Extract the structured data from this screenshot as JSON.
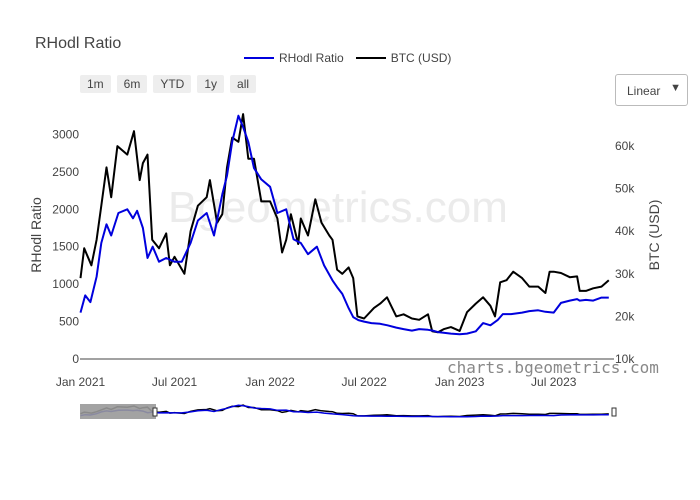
{
  "chart_data": {
    "type": "line",
    "title": "RHodl Ratio",
    "y1label": "RHodl Ratio",
    "y2label": "BTC (USD)",
    "x_ticks": [
      "Jan 2021",
      "Jul 2021",
      "Jan 2022",
      "Jul 2022",
      "Jan 2023",
      "Jul 2023"
    ],
    "y1_ticks": [
      "0",
      "500",
      "1000",
      "1500",
      "2000",
      "2500",
      "3000"
    ],
    "y2_ticks": [
      "10k",
      "20k",
      "30k",
      "40k",
      "50k",
      "60k"
    ],
    "y1lim": [
      0,
      3300
    ],
    "y2lim": [
      10000,
      68000
    ],
    "grid": false,
    "legend_position": "top-center",
    "series": [
      {
        "name": "RHodl Ratio",
        "color": "#0000dd",
        "axis": "left",
        "x": [
          "2021-01-01",
          "2021-01-10",
          "2021-01-20",
          "2021-02-01",
          "2021-02-10",
          "2021-02-20",
          "2021-03-01",
          "2021-03-15",
          "2021-04-01",
          "2021-04-12",
          "2021-04-20",
          "2021-05-01",
          "2021-05-10",
          "2021-05-20",
          "2021-06-01",
          "2021-06-15",
          "2021-07-01",
          "2021-07-15",
          "2021-08-01",
          "2021-08-15",
          "2021-09-01",
          "2021-09-15",
          "2021-10-01",
          "2021-10-10",
          "2021-10-20",
          "2021-11-01",
          "2021-11-10",
          "2021-11-20",
          "2021-12-01",
          "2021-12-15",
          "2022-01-01",
          "2022-01-15",
          "2022-02-01",
          "2022-02-15",
          "2022-03-01",
          "2022-03-15",
          "2022-04-01",
          "2022-04-15",
          "2022-05-01",
          "2022-05-10",
          "2022-05-20",
          "2022-06-01",
          "2022-06-10",
          "2022-06-20",
          "2022-07-01",
          "2022-07-15",
          "2022-08-01",
          "2022-08-15",
          "2022-09-01",
          "2022-09-15",
          "2022-10-01",
          "2022-10-15",
          "2022-11-01",
          "2022-11-10",
          "2022-11-20",
          "2022-12-01",
          "2022-12-15",
          "2023-01-01",
          "2023-01-15",
          "2023-02-01",
          "2023-02-15",
          "2023-03-01",
          "2023-03-15",
          "2023-03-25",
          "2023-04-10",
          "2023-05-01",
          "2023-05-15",
          "2023-06-01",
          "2023-06-15",
          "2023-07-01",
          "2023-07-15",
          "2023-08-01",
          "2023-08-15",
          "2023-08-20",
          "2023-09-01",
          "2023-09-15",
          "2023-10-01",
          "2023-10-15"
        ],
        "y": [
          620,
          850,
          760,
          1100,
          1550,
          1800,
          1650,
          1950,
          2000,
          1880,
          1980,
          1750,
          1350,
          1500,
          1300,
          1350,
          1300,
          1300,
          1550,
          1850,
          1950,
          1650,
          2200,
          2450,
          2900,
          3250,
          3100,
          2900,
          2550,
          2400,
          2300,
          1950,
          2000,
          1600,
          1550,
          1400,
          1500,
          1250,
          1050,
          960,
          870,
          680,
          560,
          520,
          500,
          480,
          470,
          450,
          420,
          400,
          380,
          400,
          390,
          380,
          360,
          350,
          340,
          330,
          340,
          370,
          480,
          450,
          520,
          600,
          600,
          620,
          640,
          650,
          630,
          620,
          750,
          780,
          800,
          780,
          790,
          780,
          820,
          820
        ]
      },
      {
        "name": "BTC (USD)",
        "color": "#000000",
        "axis": "right",
        "x": [
          "2021-01-01",
          "2021-01-08",
          "2021-01-15",
          "2021-01-22",
          "2021-02-01",
          "2021-02-10",
          "2021-02-20",
          "2021-03-01",
          "2021-03-13",
          "2021-04-01",
          "2021-04-14",
          "2021-04-25",
          "2021-05-01",
          "2021-05-10",
          "2021-05-19",
          "2021-06-01",
          "2021-06-15",
          "2021-06-22",
          "2021-07-01",
          "2021-07-20",
          "2021-08-01",
          "2021-08-15",
          "2021-09-01",
          "2021-09-07",
          "2021-09-21",
          "2021-10-01",
          "2021-10-10",
          "2021-10-20",
          "2021-11-01",
          "2021-11-10",
          "2021-11-20",
          "2021-12-01",
          "2021-12-15",
          "2022-01-01",
          "2022-01-15",
          "2022-01-24",
          "2022-02-01",
          "2022-02-10",
          "2022-02-24",
          "2022-03-01",
          "2022-03-15",
          "2022-03-29",
          "2022-04-10",
          "2022-04-25",
          "2022-05-01",
          "2022-05-10",
          "2022-05-20",
          "2022-06-01",
          "2022-06-10",
          "2022-06-18",
          "2022-07-01",
          "2022-07-20",
          "2022-08-01",
          "2022-08-14",
          "2022-09-01",
          "2022-09-15",
          "2022-10-01",
          "2022-10-15",
          "2022-11-01",
          "2022-11-09",
          "2022-11-20",
          "2022-12-01",
          "2022-12-15",
          "2023-01-01",
          "2023-01-15",
          "2023-02-01",
          "2023-02-15",
          "2023-03-01",
          "2023-03-10",
          "2023-03-20",
          "2023-04-01",
          "2023-04-14",
          "2023-05-01",
          "2023-05-15",
          "2023-06-01",
          "2023-06-15",
          "2023-06-23",
          "2023-07-01",
          "2023-07-15",
          "2023-08-01",
          "2023-08-15",
          "2023-08-20",
          "2023-09-01",
          "2023-09-15",
          "2023-10-01",
          "2023-10-15"
        ],
        "y": [
          29000,
          36000,
          34000,
          32000,
          38000,
          46000,
          55000,
          48000,
          60000,
          58000,
          63500,
          52000,
          56000,
          58000,
          38000,
          36000,
          39500,
          32000,
          34000,
          30000,
          40000,
          46000,
          48000,
          52000,
          42000,
          44000,
          55000,
          62000,
          61000,
          67500,
          57000,
          57000,
          47000,
          47000,
          43000,
          35000,
          38000,
          44000,
          37000,
          43000,
          39000,
          47500,
          42000,
          39000,
          38000,
          31000,
          30000,
          31500,
          29000,
          20000,
          19500,
          22000,
          23000,
          24500,
          20000,
          20500,
          19500,
          19200,
          20500,
          16500,
          16300,
          17000,
          17500,
          16600,
          21000,
          23000,
          24500,
          22500,
          20000,
          28000,
          28500,
          30500,
          29000,
          27000,
          27000,
          25500,
          30500,
          30500,
          30200,
          29200,
          29400,
          26000,
          26000,
          26600,
          27000,
          28500
        ]
      }
    ]
  },
  "controls": {
    "range_buttons": [
      "1m",
      "6m",
      "YTD",
      "1y",
      "all"
    ],
    "scale_selected": "Linear",
    "caret": "▼"
  },
  "watermark": "Bgeometrics.com",
  "footer_url": "charts.bgeometrics.com"
}
